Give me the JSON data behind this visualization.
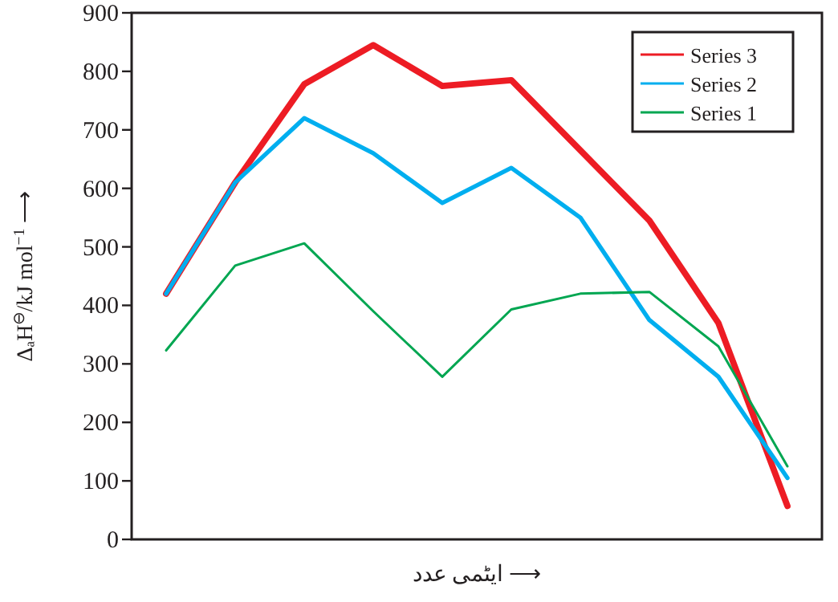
{
  "chart_data": {
    "type": "line",
    "xlabel": "ایٹمی عدد ⟶",
    "ylabel": "ΔₐH$^{⊖}$/kJ mol$^{−1}$ ⟶",
    "categories": [
      null,
      null,
      null,
      null,
      null,
      null,
      null,
      null,
      null,
      null
    ],
    "ylim": [
      0,
      900
    ],
    "yticks": [
      0,
      100,
      200,
      300,
      400,
      500,
      600,
      700,
      800,
      900
    ],
    "grid": false,
    "legend": "top right",
    "marker": "none",
    "line_style": "solid",
    "series": [
      {
        "name": "Series 3",
        "color": "#ed1c24",
        "values": [
          420,
          610,
          778,
          845,
          775,
          785,
          665,
          545,
          370,
          57
        ]
      },
      {
        "name": "Series 2",
        "color": "#00aeef",
        "values": [
          420,
          610,
          720,
          660,
          575,
          635,
          550,
          375,
          278,
          105
        ]
      },
      {
        "name": "Series 1",
        "color": "#00a651",
        "values": [
          323,
          468,
          506,
          390,
          278,
          393,
          420,
          423,
          330,
          125
        ]
      }
    ]
  }
}
